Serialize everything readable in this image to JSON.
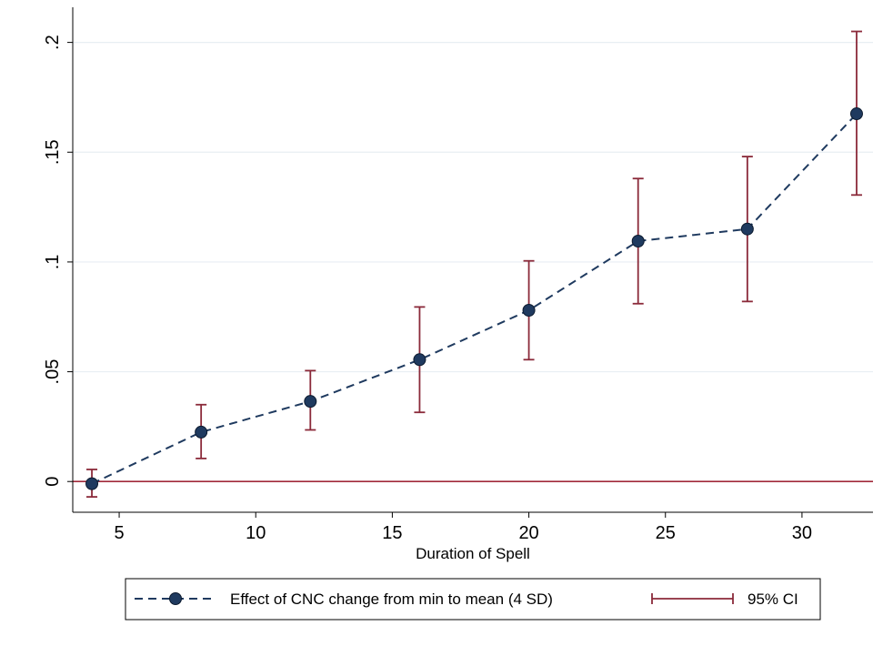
{
  "chart_data": {
    "type": "line",
    "xlabel": "Duration of Spell",
    "ylabel": "",
    "xlim": [
      3.3,
      32.6
    ],
    "ylim": [
      -0.014,
      0.216
    ],
    "xticks": [
      5,
      10,
      15,
      20,
      25,
      30
    ],
    "xtick_labels": [
      "5",
      "10",
      "15",
      "20",
      "25",
      "30"
    ],
    "yticks": [
      0,
      0.05,
      0.1,
      0.15,
      0.2
    ],
    "ytick_labels": [
      "0",
      ".05",
      ".1",
      ".15",
      ".2"
    ],
    "grid": "horizontal",
    "reference_line": {
      "y": 0,
      "color": "#a12a3a"
    },
    "legend_position": "bottom",
    "series": [
      {
        "name": "Effect of CNC change from min to mean (4 SD)",
        "style": "dashed-line-with-markers",
        "color": "#1f3a5f",
        "x": [
          4,
          8,
          12,
          16,
          20,
          24,
          28,
          32
        ],
        "y": [
          -0.001,
          0.0225,
          0.0365,
          0.0555,
          0.078,
          0.1095,
          0.115,
          0.1675
        ]
      },
      {
        "name": "95% CI",
        "style": "error-bars",
        "color": "#8b2a3a",
        "x": [
          4,
          8,
          12,
          16,
          20,
          24,
          28,
          32
        ],
        "lower": [
          -0.007,
          0.0105,
          0.0235,
          0.0315,
          0.0555,
          0.081,
          0.082,
          0.1305
        ],
        "upper": [
          0.0055,
          0.035,
          0.0505,
          0.0795,
          0.1005,
          0.138,
          0.148,
          0.205
        ]
      }
    ]
  }
}
